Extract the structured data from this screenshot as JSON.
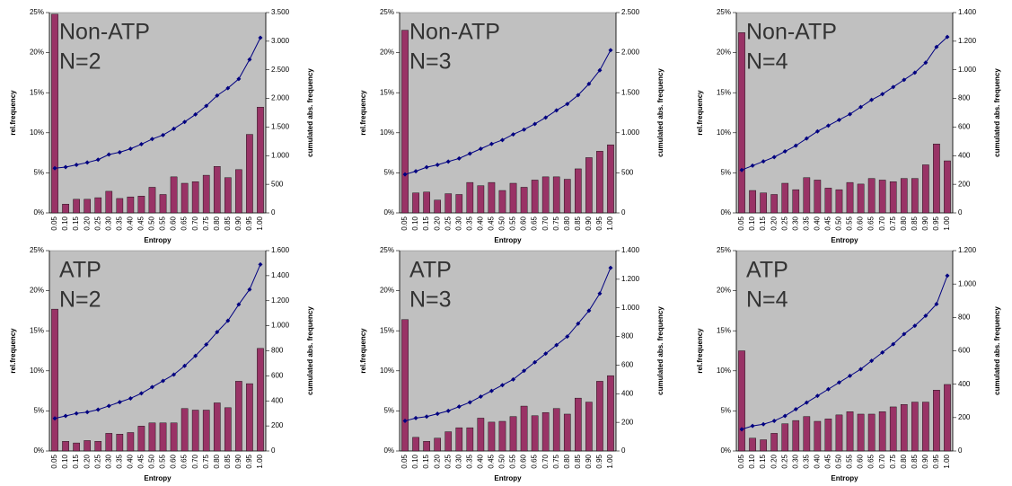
{
  "chart_data": [
    {
      "type": "bar",
      "annotation": [
        "Non-ATP",
        "N=2"
      ],
      "x_label": "Entropy",
      "y_label": "rel.frequency",
      "y2_label": "cumulated abs. frequency",
      "categories": [
        "0.05",
        "0.10",
        "0.15",
        "0.20",
        "0.25",
        "0.30",
        "0.35",
        "0.40",
        "0.45",
        "0.50",
        "0.55",
        "0.60",
        "0.65",
        "0.70",
        "0.75",
        "0.80",
        "0.85",
        "0.90",
        "0.95",
        "1.00"
      ],
      "ylim": [
        0,
        25
      ],
      "yticks": [
        {
          "value": 0,
          "label": "0%"
        },
        {
          "value": 5,
          "label": "5%"
        },
        {
          "value": 10,
          "label": "10%"
        },
        {
          "value": 15,
          "label": "15%"
        },
        {
          "value": 20,
          "label": "20%"
        },
        {
          "value": 25,
          "label": "25%"
        }
      ],
      "y2lim": [
        0,
        3500
      ],
      "y2ticks": [
        0,
        500,
        {
          "value": 1000,
          "label": "1.000"
        },
        {
          "value": 1500,
          "label": "1.500"
        },
        {
          "value": 2000,
          "label": "2.000"
        },
        {
          "value": 2500,
          "label": "2.500"
        },
        {
          "value": 3000,
          "label": "3.000"
        },
        {
          "value": 3500,
          "label": "3.500"
        }
      ],
      "series": [
        {
          "type": "bar",
          "color": "#993366",
          "values": [
            24.8,
            1.1,
            1.7,
            1.7,
            1.9,
            2.7,
            1.8,
            2.0,
            2.1,
            3.2,
            2.3,
            4.5,
            3.7,
            3.9,
            4.7,
            5.8,
            4.4,
            5.4,
            9.8,
            13.2
          ]
        },
        {
          "type": "line",
          "axis": "y2",
          "color": "#000080",
          "values": [
            780,
            800,
            840,
            880,
            930,
            1020,
            1060,
            1120,
            1200,
            1290,
            1360,
            1470,
            1590,
            1720,
            1870,
            2050,
            2180,
            2340,
            2680,
            3060
          ]
        }
      ]
    },
    {
      "type": "bar",
      "annotation": [
        "Non-ATP",
        "N=3"
      ],
      "x_label": "Entropy",
      "y_label": "rel.frequency",
      "y2_label": "cumulated abs. frequency",
      "categories": [
        "0.05",
        "0.10",
        "0.15",
        "0.20",
        "0.25",
        "0.30",
        "0.35",
        "0.40",
        "0.45",
        "0.50",
        "0.55",
        "0.60",
        "0.65",
        "0.70",
        "0.75",
        "0.80",
        "0.85",
        "0.90",
        "0.95",
        "1.00"
      ],
      "ylim": [
        0,
        25
      ],
      "yticks": [
        {
          "value": 0,
          "label": "0%"
        },
        {
          "value": 5,
          "label": "5%"
        },
        {
          "value": 10,
          "label": "10%"
        },
        {
          "value": 15,
          "label": "15%"
        },
        {
          "value": 20,
          "label": "20%"
        },
        {
          "value": 25,
          "label": "25%"
        }
      ],
      "y2lim": [
        0,
        2500
      ],
      "y2ticks": [
        0,
        500,
        {
          "value": 1000,
          "label": "1.000"
        },
        {
          "value": 1500,
          "label": "1.500"
        },
        {
          "value": 2000,
          "label": "2.000"
        },
        {
          "value": 2500,
          "label": "2.500"
        }
      ],
      "series": [
        {
          "type": "bar",
          "color": "#993366",
          "values": [
            22.8,
            2.5,
            2.6,
            1.6,
            2.4,
            2.3,
            3.8,
            3.4,
            3.8,
            2.8,
            3.7,
            3.2,
            4.1,
            4.5,
            4.5,
            4.2,
            5.5,
            6.9,
            7.7,
            8.5
          ]
        },
        {
          "type": "line",
          "axis": "y2",
          "color": "#000080",
          "values": [
            480,
            520,
            570,
            600,
            640,
            680,
            740,
            800,
            860,
            910,
            980,
            1040,
            1110,
            1190,
            1280,
            1360,
            1470,
            1610,
            1780,
            2030
          ]
        }
      ]
    },
    {
      "type": "bar",
      "annotation": [
        "Non-ATP",
        "N=4"
      ],
      "x_label": "Entropy",
      "y_label": "rel.frequency",
      "y2_label": "cumulated abs. frequency",
      "categories": [
        "0.05",
        "0.10",
        "0.15",
        "0.20",
        "0.25",
        "0.30",
        "0.35",
        "0.40",
        "0.45",
        "0.50",
        "0.55",
        "0.60",
        "0.65",
        "0.70",
        "0.75",
        "0.80",
        "0.85",
        "0.90",
        "0.95",
        "1.00"
      ],
      "ylim": [
        0,
        25
      ],
      "yticks": [
        {
          "value": 0,
          "label": "0%"
        },
        {
          "value": 5,
          "label": "5%"
        },
        {
          "value": 10,
          "label": "10%"
        },
        {
          "value": 15,
          "label": "15%"
        },
        {
          "value": 20,
          "label": "20%"
        },
        {
          "value": 25,
          "label": "25%"
        }
      ],
      "y2lim": [
        0,
        1400
      ],
      "y2ticks": [
        0,
        200,
        400,
        600,
        800,
        {
          "value": 1000,
          "label": "1.000"
        },
        {
          "value": 1200,
          "label": "1.200"
        },
        {
          "value": 1400,
          "label": "1.400"
        }
      ],
      "series": [
        {
          "type": "bar",
          "color": "#993366",
          "values": [
            22.5,
            2.8,
            2.5,
            2.3,
            3.7,
            2.9,
            4.4,
            4.1,
            3.1,
            2.9,
            3.8,
            3.6,
            4.3,
            4.1,
            3.9,
            4.3,
            4.3,
            6.0,
            8.6,
            6.5
          ]
        },
        {
          "type": "line",
          "axis": "y2",
          "color": "#000080",
          "values": [
            300,
            330,
            360,
            390,
            430,
            470,
            520,
            570,
            610,
            650,
            690,
            740,
            790,
            830,
            880,
            930,
            980,
            1050,
            1160,
            1230
          ]
        }
      ]
    },
    {
      "type": "bar",
      "annotation": [
        "ATP",
        "N=2"
      ],
      "x_label": "Entropy",
      "y_label": "rel.frequency",
      "y2_label": "cumulated abs. frequency",
      "categories": [
        "0.05",
        "0.10",
        "0.15",
        "0.20",
        "0.25",
        "0.30",
        "0.35",
        "0.40",
        "0.45",
        "0.50",
        "0.55",
        "0.60",
        "0.65",
        "0.70",
        "0.75",
        "0.80",
        "0.85",
        "0.90",
        "0.95",
        "1.00"
      ],
      "ylim": [
        0,
        25
      ],
      "yticks": [
        {
          "value": 0,
          "label": "0%"
        },
        {
          "value": 5,
          "label": "5%"
        },
        {
          "value": 10,
          "label": "10%"
        },
        {
          "value": 15,
          "label": "15%"
        },
        {
          "value": 20,
          "label": "20%"
        },
        {
          "value": 25,
          "label": "25%"
        }
      ],
      "y2lim": [
        0,
        1600
      ],
      "y2ticks": [
        0,
        200,
        400,
        600,
        800,
        {
          "value": 1000,
          "label": "1.000"
        },
        {
          "value": 1200,
          "label": "1.200"
        },
        {
          "value": 1400,
          "label": "1.400"
        },
        {
          "value": 1600,
          "label": "1.600"
        }
      ],
      "series": [
        {
          "type": "bar",
          "color": "#993366",
          "values": [
            17.7,
            1.2,
            1.0,
            1.3,
            1.2,
            2.2,
            2.1,
            2.3,
            3.1,
            3.5,
            3.5,
            3.5,
            5.3,
            5.1,
            5.1,
            6.0,
            5.4,
            8.7,
            8.4,
            12.8
          ]
        },
        {
          "type": "line",
          "axis": "y2",
          "color": "#000080",
          "values": [
            260,
            280,
            300,
            310,
            330,
            360,
            390,
            420,
            460,
            510,
            560,
            610,
            680,
            760,
            850,
            950,
            1040,
            1170,
            1290,
            1490
          ]
        }
      ]
    },
    {
      "type": "bar",
      "annotation": [
        "ATP",
        "N=3"
      ],
      "x_label": "Entropy",
      "y_label": "rel.frequency",
      "y2_label": "cumulated abs. frequency",
      "categories": [
        "0.05",
        "0.10",
        "0.15",
        "0.20",
        "0.25",
        "0.30",
        "0.35",
        "0.40",
        "0.45",
        "0.50",
        "0.55",
        "0.60",
        "0.65",
        "0.70",
        "0.75",
        "0.80",
        "0.85",
        "0.90",
        "0.95",
        "1.00"
      ],
      "ylim": [
        0,
        25
      ],
      "yticks": [
        {
          "value": 0,
          "label": "0%"
        },
        {
          "value": 5,
          "label": "5%"
        },
        {
          "value": 10,
          "label": "10%"
        },
        {
          "value": 15,
          "label": "15%"
        },
        {
          "value": 20,
          "label": "20%"
        },
        {
          "value": 25,
          "label": "25%"
        }
      ],
      "y2lim": [
        0,
        1400
      ],
      "y2ticks": [
        0,
        200,
        400,
        600,
        800,
        {
          "value": 1000,
          "label": "1.000"
        },
        {
          "value": 1200,
          "label": "1.200"
        },
        {
          "value": 1400,
          "label": "1.400"
        }
      ],
      "series": [
        {
          "type": "bar",
          "color": "#993366",
          "values": [
            16.4,
            1.7,
            1.2,
            1.6,
            2.4,
            2.9,
            2.9,
            4.1,
            3.6,
            3.7,
            4.3,
            5.6,
            4.4,
            4.8,
            5.3,
            4.6,
            6.6,
            6.1,
            8.7,
            9.4
          ]
        },
        {
          "type": "line",
          "axis": "y2",
          "color": "#000080",
          "values": [
            210,
            230,
            240,
            260,
            280,
            310,
            340,
            380,
            420,
            460,
            500,
            560,
            620,
            680,
            740,
            800,
            890,
            980,
            1100,
            1280
          ]
        }
      ]
    },
    {
      "type": "bar",
      "annotation": [
        "ATP",
        "N=4"
      ],
      "x_label": "Entropy",
      "y_label": "rel.frequency",
      "y2_label": "cumulated abs. frequency",
      "categories": [
        "0.05",
        "0.10",
        "0.15",
        "0.20",
        "0.25",
        "0.30",
        "0.35",
        "0.40",
        "0.45",
        "0.50",
        "0.55",
        "0.60",
        "0.65",
        "0.70",
        "0.75",
        "0.80",
        "0.85",
        "0.90",
        "0.95",
        "1.00"
      ],
      "ylim": [
        0,
        25
      ],
      "yticks": [
        {
          "value": 0,
          "label": "0%"
        },
        {
          "value": 5,
          "label": "5%"
        },
        {
          "value": 10,
          "label": "10%"
        },
        {
          "value": 15,
          "label": "15%"
        },
        {
          "value": 20,
          "label": "20%"
        },
        {
          "value": 25,
          "label": "25%"
        }
      ],
      "y2lim": [
        0,
        1200
      ],
      "y2ticks": [
        0,
        200,
        400,
        600,
        800,
        {
          "value": 1000,
          "label": "1.000"
        },
        {
          "value": 1200,
          "label": "1.200"
        }
      ],
      "series": [
        {
          "type": "bar",
          "color": "#993366",
          "values": [
            12.5,
            1.6,
            1.4,
            2.2,
            3.4,
            3.8,
            4.3,
            3.7,
            4.0,
            4.5,
            4.9,
            4.6,
            4.6,
            4.9,
            5.5,
            5.8,
            6.1,
            6.1,
            7.6,
            8.3
          ]
        },
        {
          "type": "line",
          "axis": "y2",
          "color": "#000080",
          "values": [
            130,
            150,
            160,
            180,
            210,
            250,
            290,
            330,
            370,
            410,
            450,
            490,
            540,
            590,
            640,
            700,
            750,
            810,
            880,
            1050
          ]
        }
      ]
    }
  ]
}
